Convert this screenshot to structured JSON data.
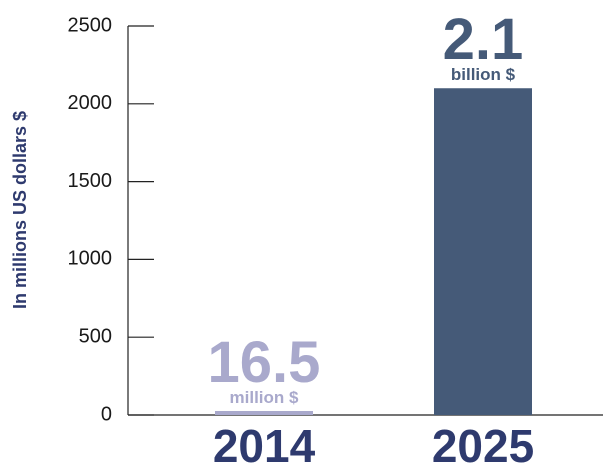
{
  "chart_data": {
    "type": "bar",
    "categories": [
      "2014",
      "2025"
    ],
    "values": [
      16.5,
      2100
    ],
    "ylabel": "In millions US dollars $",
    "ylim": [
      0,
      2500
    ],
    "yticks": [
      0,
      500,
      1000,
      1500,
      2000,
      2500
    ],
    "grid": false,
    "annotations": [
      {
        "value_text": "16.5",
        "unit_text": "million $",
        "color": "#a9a9cc"
      },
      {
        "value_text": "2.1",
        "unit_text": "billion $",
        "color": "#455a78"
      }
    ],
    "bar_colors": [
      "#a9a9cc",
      "#455a78"
    ],
    "category_color": "#2e3a6e",
    "axis_color": "#222222"
  }
}
